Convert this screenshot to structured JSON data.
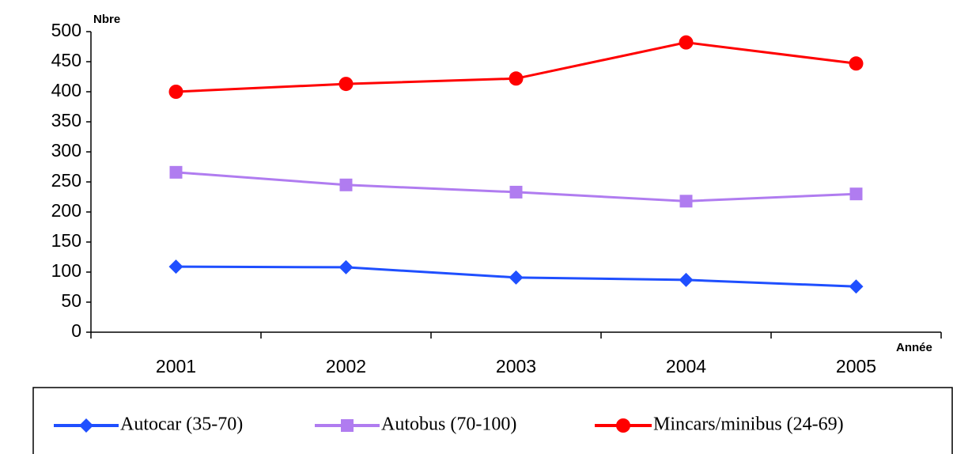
{
  "chart_data": {
    "type": "line",
    "y_label": "Nbre",
    "x_label": "Année",
    "categories": [
      "2001",
      "2002",
      "2003",
      "2004",
      "2005"
    ],
    "series": [
      {
        "name": "Autocar (35-70)",
        "color": "#1f4fff",
        "marker": "diamond",
        "values": [
          109,
          108,
          91,
          87,
          76
        ]
      },
      {
        "name": "Autobus (70-100)",
        "color": "#b07cf0",
        "marker": "square",
        "values": [
          266,
          245,
          233,
          218,
          230
        ]
      },
      {
        "name": "Mincars/minibus (24-69)",
        "color": "#ff0000",
        "marker": "circle",
        "values": [
          400,
          413,
          422,
          482,
          447
        ]
      }
    ],
    "ylim": [
      0,
      500
    ],
    "yticks": [
      0,
      50,
      100,
      150,
      200,
      250,
      300,
      350,
      400,
      450,
      500
    ],
    "grid": false,
    "legend": "bottom"
  }
}
